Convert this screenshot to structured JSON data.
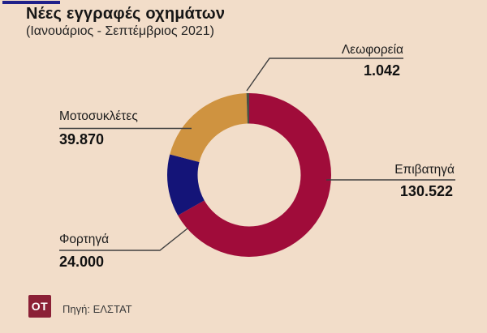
{
  "canvas": {
    "background_color": "#f2ddc9",
    "accent_bar_color": "#20208a"
  },
  "header": {
    "title": "Νέες εγγραφές οχημάτων",
    "subtitle": "(Ιανουάριος - Σεπτέμβριος 2021)"
  },
  "chart_data": {
    "type": "pie",
    "variant": "donut",
    "title": "Νέες εγγραφές οχημάτων",
    "subtitle": "(Ιανουάριος - Σεπτέμβριος 2021)",
    "start_angle_deg": 0,
    "direction": "clockwise",
    "total": 195434,
    "slices": [
      {
        "label": "Επιβατηγά",
        "value": 130522,
        "display": "130.522",
        "color": "#a00c3a"
      },
      {
        "label": "Φορτηγά",
        "value": 24000,
        "display": "24.000",
        "color": "#141478"
      },
      {
        "label": "Μοτοσυκλέτες",
        "value": 39870,
        "display": "39.870",
        "color": "#cf9340"
      },
      {
        "label": "Λεωφορεία",
        "value": 1042,
        "display": "1.042",
        "color": "#4a5143"
      }
    ],
    "leader_line_color": "#3f3f3f"
  },
  "footer": {
    "logo_text": "OT",
    "logo_bg": "#8b2036",
    "source": "Πηγή: ΕΛΣΤΑΤ"
  }
}
